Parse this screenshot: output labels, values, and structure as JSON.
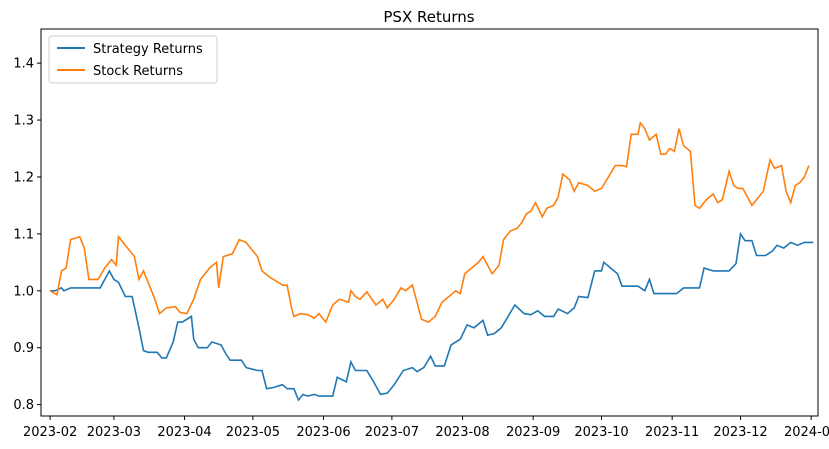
{
  "chart_data": {
    "type": "line",
    "title": "PSX Returns",
    "xlabel": "",
    "ylabel": "",
    "x_ticks": [
      "2023-02",
      "2023-03",
      "2023-04",
      "2023-05",
      "2023-06",
      "2023-07",
      "2023-08",
      "2023-09",
      "2023-10",
      "2023-11",
      "2023-12",
      "2024-01"
    ],
    "y_ticks": [
      "0.8",
      "0.9",
      "1.0",
      "1.1",
      "1.2",
      "1.3",
      "1.4"
    ],
    "xlim": [
      "2023-01-28",
      "2024-01-04"
    ],
    "ylim": [
      0.78,
      1.46
    ],
    "grid": false,
    "legend_position": "top-left",
    "series": [
      {
        "name": "Strategy Returns",
        "color": "#1f77b4",
        "points": [
          [
            "2023-02-01",
            1.0
          ],
          [
            "2023-02-03",
            1.0
          ],
          [
            "2023-02-06",
            1.005
          ],
          [
            "2023-02-07",
            1.0
          ],
          [
            "2023-02-10",
            1.005
          ],
          [
            "2023-02-14",
            1.005
          ],
          [
            "2023-02-20",
            1.005
          ],
          [
            "2023-02-23",
            1.005
          ],
          [
            "2023-02-27",
            1.035
          ],
          [
            "2023-03-01",
            1.02
          ],
          [
            "2023-03-03",
            1.015
          ],
          [
            "2023-03-06",
            0.99
          ],
          [
            "2023-03-09",
            0.99
          ],
          [
            "2023-03-12",
            0.935
          ],
          [
            "2023-03-14",
            0.895
          ],
          [
            "2023-03-16",
            0.892
          ],
          [
            "2023-03-20",
            0.892
          ],
          [
            "2023-03-22",
            0.882
          ],
          [
            "2023-03-24",
            0.882
          ],
          [
            "2023-03-27",
            0.91
          ],
          [
            "2023-03-29",
            0.945
          ],
          [
            "2023-03-31",
            0.945
          ],
          [
            "2023-04-04",
            0.955
          ],
          [
            "2023-04-05",
            0.915
          ],
          [
            "2023-04-07",
            0.9
          ],
          [
            "2023-04-11",
            0.9
          ],
          [
            "2023-04-13",
            0.91
          ],
          [
            "2023-04-17",
            0.905
          ],
          [
            "2023-04-19",
            0.89
          ],
          [
            "2023-04-21",
            0.878
          ],
          [
            "2023-04-26",
            0.878
          ],
          [
            "2023-04-28",
            0.865
          ],
          [
            "2023-05-03",
            0.86
          ],
          [
            "2023-05-05",
            0.86
          ],
          [
            "2023-05-07",
            0.828
          ],
          [
            "2023-05-10",
            0.83
          ],
          [
            "2023-05-14",
            0.835
          ],
          [
            "2023-05-16",
            0.828
          ],
          [
            "2023-05-19",
            0.828
          ],
          [
            "2023-05-21",
            0.808
          ],
          [
            "2023-05-23",
            0.818
          ],
          [
            "2023-05-25",
            0.815
          ],
          [
            "2023-05-28",
            0.818
          ],
          [
            "2023-05-30",
            0.815
          ],
          [
            "2023-06-01",
            0.815
          ],
          [
            "2023-06-05",
            0.815
          ],
          [
            "2023-06-07",
            0.848
          ],
          [
            "2023-06-11",
            0.84
          ],
          [
            "2023-06-13",
            0.875
          ],
          [
            "2023-06-15",
            0.86
          ],
          [
            "2023-06-20",
            0.86
          ],
          [
            "2023-06-23",
            0.84
          ],
          [
            "2023-06-26",
            0.818
          ],
          [
            "2023-06-29",
            0.82
          ],
          [
            "2023-07-02",
            0.835
          ],
          [
            "2023-07-06",
            0.86
          ],
          [
            "2023-07-10",
            0.865
          ],
          [
            "2023-07-12",
            0.858
          ],
          [
            "2023-07-15",
            0.865
          ],
          [
            "2023-07-18",
            0.885
          ],
          [
            "2023-07-20",
            0.868
          ],
          [
            "2023-07-24",
            0.868
          ],
          [
            "2023-07-27",
            0.905
          ],
          [
            "2023-07-31",
            0.915
          ],
          [
            "2023-08-03",
            0.94
          ],
          [
            "2023-08-06",
            0.935
          ],
          [
            "2023-08-10",
            0.948
          ],
          [
            "2023-08-12",
            0.922
          ],
          [
            "2023-08-15",
            0.925
          ],
          [
            "2023-08-18",
            0.935
          ],
          [
            "2023-08-21",
            0.955
          ],
          [
            "2023-08-24",
            0.975
          ],
          [
            "2023-08-28",
            0.96
          ],
          [
            "2023-08-31",
            0.958
          ],
          [
            "2023-09-03",
            0.965
          ],
          [
            "2023-09-06",
            0.955
          ],
          [
            "2023-09-10",
            0.955
          ],
          [
            "2023-09-12",
            0.968
          ],
          [
            "2023-09-16",
            0.96
          ],
          [
            "2023-09-19",
            0.97
          ],
          [
            "2023-09-21",
            0.99
          ],
          [
            "2023-09-25",
            0.988
          ],
          [
            "2023-09-28",
            1.035
          ],
          [
            "2023-10-01",
            1.035
          ],
          [
            "2023-10-02",
            1.05
          ],
          [
            "2023-10-05",
            1.04
          ],
          [
            "2023-10-08",
            1.03
          ],
          [
            "2023-10-10",
            1.008
          ],
          [
            "2023-10-13",
            1.008
          ],
          [
            "2023-10-17",
            1.008
          ],
          [
            "2023-10-20",
            1.0
          ],
          [
            "2023-10-22",
            1.02
          ],
          [
            "2023-10-24",
            0.995
          ],
          [
            "2023-10-28",
            0.995
          ],
          [
            "2023-10-31",
            0.995
          ],
          [
            "2023-11-03",
            0.995
          ],
          [
            "2023-11-06",
            1.005
          ],
          [
            "2023-11-10",
            1.005
          ],
          [
            "2023-11-13",
            1.005
          ],
          [
            "2023-11-15",
            1.04
          ],
          [
            "2023-11-19",
            1.035
          ],
          [
            "2023-11-23",
            1.035
          ],
          [
            "2023-11-26",
            1.035
          ],
          [
            "2023-11-29",
            1.048
          ],
          [
            "2023-12-01",
            1.1
          ],
          [
            "2023-12-03",
            1.088
          ],
          [
            "2023-12-06",
            1.088
          ],
          [
            "2023-12-08",
            1.062
          ],
          [
            "2023-12-12",
            1.062
          ],
          [
            "2023-12-15",
            1.07
          ],
          [
            "2023-12-17",
            1.08
          ],
          [
            "2023-12-20",
            1.075
          ],
          [
            "2023-12-23",
            1.085
          ],
          [
            "2023-12-26",
            1.08
          ],
          [
            "2023-12-29",
            1.085
          ],
          [
            "2024-01-02",
            1.085
          ],
          [
            "2023-12-31",
            1.085
          ]
        ]
      },
      {
        "name": "Stock Returns",
        "color": "#ff7f0e",
        "points": [
          [
            "2023-02-01",
            1.0
          ],
          [
            "2023-02-04",
            0.993
          ],
          [
            "2023-02-06",
            1.035
          ],
          [
            "2023-02-08",
            1.04
          ],
          [
            "2023-02-10",
            1.09
          ],
          [
            "2023-02-14",
            1.095
          ],
          [
            "2023-02-16",
            1.075
          ],
          [
            "2023-02-18",
            1.02
          ],
          [
            "2023-02-22",
            1.02
          ],
          [
            "2023-02-25",
            1.04
          ],
          [
            "2023-02-28",
            1.055
          ],
          [
            "2023-03-02",
            1.045
          ],
          [
            "2023-03-03",
            1.095
          ],
          [
            "2023-03-06",
            1.08
          ],
          [
            "2023-03-10",
            1.06
          ],
          [
            "2023-03-12",
            1.02
          ],
          [
            "2023-03-14",
            1.035
          ],
          [
            "2023-03-17",
            1.005
          ],
          [
            "2023-03-19",
            0.985
          ],
          [
            "2023-03-21",
            0.96
          ],
          [
            "2023-03-24",
            0.97
          ],
          [
            "2023-03-28",
            0.972
          ],
          [
            "2023-03-30",
            0.962
          ],
          [
            "2023-04-02",
            0.96
          ],
          [
            "2023-04-05",
            0.985
          ],
          [
            "2023-04-08",
            1.02
          ],
          [
            "2023-04-12",
            1.04
          ],
          [
            "2023-04-15",
            1.05
          ],
          [
            "2023-04-16",
            1.005
          ],
          [
            "2023-04-18",
            1.06
          ],
          [
            "2023-04-22",
            1.065
          ],
          [
            "2023-04-25",
            1.09
          ],
          [
            "2023-04-28",
            1.085
          ],
          [
            "2023-04-30",
            1.075
          ],
          [
            "2023-05-03",
            1.06
          ],
          [
            "2023-05-05",
            1.035
          ],
          [
            "2023-05-08",
            1.025
          ],
          [
            "2023-05-10",
            1.02
          ],
          [
            "2023-05-14",
            1.01
          ],
          [
            "2023-05-16",
            1.01
          ],
          [
            "2023-05-18",
            0.97
          ],
          [
            "2023-05-19",
            0.955
          ],
          [
            "2023-05-22",
            0.96
          ],
          [
            "2023-05-25",
            0.958
          ],
          [
            "2023-05-28",
            0.952
          ],
          [
            "2023-05-30",
            0.96
          ],
          [
            "2023-06-02",
            0.945
          ],
          [
            "2023-06-05",
            0.975
          ],
          [
            "2023-06-08",
            0.985
          ],
          [
            "2023-06-12",
            0.98
          ],
          [
            "2023-06-13",
            1.0
          ],
          [
            "2023-06-15",
            0.99
          ],
          [
            "2023-06-17",
            0.985
          ],
          [
            "2023-06-20",
            0.998
          ],
          [
            "2023-06-24",
            0.975
          ],
          [
            "2023-06-27",
            0.985
          ],
          [
            "2023-06-29",
            0.97
          ],
          [
            "2023-07-02",
            0.985
          ],
          [
            "2023-07-05",
            1.005
          ],
          [
            "2023-07-07",
            1.0
          ],
          [
            "2023-07-10",
            1.01
          ],
          [
            "2023-07-12",
            0.98
          ],
          [
            "2023-07-14",
            0.95
          ],
          [
            "2023-07-17",
            0.945
          ],
          [
            "2023-07-20",
            0.955
          ],
          [
            "2023-07-23",
            0.98
          ],
          [
            "2023-07-26",
            0.99
          ],
          [
            "2023-07-29",
            1.0
          ],
          [
            "2023-07-31",
            0.995
          ],
          [
            "2023-08-02",
            1.03
          ],
          [
            "2023-08-05",
            1.04
          ],
          [
            "2023-08-08",
            1.05
          ],
          [
            "2023-08-10",
            1.06
          ],
          [
            "2023-08-12",
            1.045
          ],
          [
            "2023-08-14",
            1.03
          ],
          [
            "2023-08-17",
            1.045
          ],
          [
            "2023-08-19",
            1.09
          ],
          [
            "2023-08-22",
            1.105
          ],
          [
            "2023-08-25",
            1.11
          ],
          [
            "2023-08-27",
            1.12
          ],
          [
            "2023-08-29",
            1.135
          ],
          [
            "2023-08-31",
            1.14
          ],
          [
            "2023-09-02",
            1.155
          ],
          [
            "2023-09-05",
            1.13
          ],
          [
            "2023-09-07",
            1.145
          ],
          [
            "2023-09-10",
            1.15
          ],
          [
            "2023-09-12",
            1.165
          ],
          [
            "2023-09-14",
            1.205
          ],
          [
            "2023-09-17",
            1.195
          ],
          [
            "2023-09-19",
            1.175
          ],
          [
            "2023-09-21",
            1.19
          ],
          [
            "2023-09-25",
            1.185
          ],
          [
            "2023-09-28",
            1.175
          ],
          [
            "2023-10-01",
            1.18
          ],
          [
            "2023-10-04",
            1.2
          ],
          [
            "2023-10-07",
            1.22
          ],
          [
            "2023-10-10",
            1.22
          ],
          [
            "2023-10-12",
            1.218
          ],
          [
            "2023-10-14",
            1.275
          ],
          [
            "2023-10-17",
            1.275
          ],
          [
            "2023-10-18",
            1.295
          ],
          [
            "2023-10-20",
            1.285
          ],
          [
            "2023-10-22",
            1.265
          ],
          [
            "2023-10-25",
            1.275
          ],
          [
            "2023-10-27",
            1.24
          ],
          [
            "2023-10-29",
            1.24
          ],
          [
            "2023-10-31",
            1.25
          ],
          [
            "2023-11-02",
            1.245
          ],
          [
            "2023-11-04",
            1.285
          ],
          [
            "2023-11-06",
            1.255
          ],
          [
            "2023-11-09",
            1.245
          ],
          [
            "2023-11-11",
            1.15
          ],
          [
            "2023-11-13",
            1.145
          ],
          [
            "2023-11-16",
            1.16
          ],
          [
            "2023-11-19",
            1.17
          ],
          [
            "2023-11-21",
            1.155
          ],
          [
            "2023-11-23",
            1.16
          ],
          [
            "2023-11-26",
            1.21
          ],
          [
            "2023-11-28",
            1.185
          ],
          [
            "2023-11-30",
            1.18
          ],
          [
            "2023-12-02",
            1.18
          ],
          [
            "2023-12-04",
            1.165
          ],
          [
            "2023-12-06",
            1.15
          ],
          [
            "2023-12-09",
            1.165
          ],
          [
            "2023-12-11",
            1.175
          ],
          [
            "2023-12-14",
            1.23
          ],
          [
            "2023-12-16",
            1.215
          ],
          [
            "2023-12-19",
            1.22
          ],
          [
            "2023-12-21",
            1.175
          ],
          [
            "2023-12-23",
            1.155
          ],
          [
            "2023-12-25",
            1.185
          ],
          [
            "2023-12-27",
            1.19
          ],
          [
            "2023-12-29",
            1.2
          ],
          [
            "2023-12-31",
            1.22
          ]
        ]
      }
    ]
  }
}
